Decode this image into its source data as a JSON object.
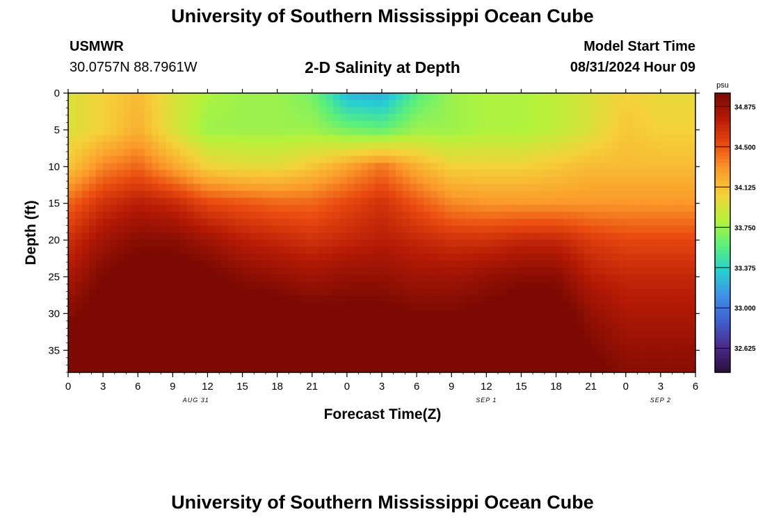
{
  "page": {
    "title": "University of Southern Mississippi Ocean Cube",
    "bottom_title": "University of Southern Mississippi Ocean Cube",
    "station_id": "USMWR",
    "coordinates": "30.0757N  88.7961W",
    "plot_title": "2-D Salinity at Depth",
    "model_start_label": "Model Start Time",
    "model_start_value": "08/31/2024 Hour 09"
  },
  "chart_data": {
    "type": "heatmap",
    "title": "2-D Salinity at Depth",
    "xlabel": "Forecast Time(Z)",
    "ylabel": "Depth (ft)",
    "x_ticks": [
      "0",
      "3",
      "6",
      "9",
      "12",
      "15",
      "18",
      "21",
      "0",
      "3",
      "6",
      "9",
      "12",
      "15",
      "18",
      "21",
      "0",
      "3",
      "6"
    ],
    "x_range_hours": [
      0,
      54
    ],
    "date_labels": [
      {
        "label": "AUG 31",
        "hour": 11
      },
      {
        "label": "SEP 1",
        "hour": 36
      },
      {
        "label": "SEP 2",
        "hour": 51
      }
    ],
    "y_ticks": [
      "0",
      "5",
      "10",
      "15",
      "20",
      "25",
      "30",
      "35"
    ],
    "y_range_ft": [
      0,
      38
    ],
    "y_inverted": true,
    "colorbar": {
      "unit": "psu",
      "min": 32.4,
      "max": 35.0,
      "ticks": [
        "34.875",
        "34.500",
        "34.125",
        "33.750",
        "33.375",
        "33.000",
        "32.625"
      ],
      "colors": [
        "#2b0f3b",
        "#4a2a8a",
        "#3f5fcf",
        "#3f8fe6",
        "#27d0d0",
        "#5cf07a",
        "#b6f23a",
        "#f5d13a",
        "#fb9a2a",
        "#ea4a10",
        "#b51a05",
        "#7c0a02"
      ]
    },
    "depths_ft": [
      0,
      5,
      10,
      15,
      20,
      25,
      30,
      35,
      38
    ],
    "hours": [
      0,
      3,
      6,
      9,
      12,
      15,
      18,
      21,
      24,
      27,
      30,
      33,
      36,
      39,
      42,
      45,
      48,
      51,
      54
    ],
    "salinity_psu": [
      [
        33.95,
        34.05,
        34.15,
        33.95,
        33.8,
        33.75,
        33.75,
        33.65,
        33.25,
        33.2,
        33.55,
        33.75,
        33.8,
        33.8,
        33.85,
        33.95,
        34.05,
        34.0,
        34.0
      ],
      [
        33.95,
        34.05,
        34.2,
        33.95,
        33.75,
        33.75,
        33.75,
        33.75,
        33.65,
        33.6,
        33.75,
        33.75,
        33.8,
        33.8,
        33.85,
        33.95,
        34.1,
        34.05,
        34.05
      ],
      [
        34.1,
        34.35,
        34.45,
        34.25,
        34.05,
        34.0,
        34.0,
        34.1,
        34.25,
        34.4,
        34.2,
        34.05,
        34.05,
        34.05,
        34.1,
        34.15,
        34.15,
        34.15,
        34.15
      ],
      [
        34.45,
        34.65,
        34.75,
        34.7,
        34.55,
        34.5,
        34.45,
        34.45,
        34.55,
        34.65,
        34.5,
        34.35,
        34.3,
        34.3,
        34.3,
        34.3,
        34.3,
        34.3,
        34.3
      ],
      [
        34.65,
        34.85,
        34.95,
        34.95,
        34.85,
        34.75,
        34.7,
        34.65,
        34.7,
        34.75,
        34.7,
        34.65,
        34.65,
        34.7,
        34.7,
        34.6,
        34.55,
        34.55,
        34.55
      ],
      [
        34.8,
        35.0,
        35.1,
        35.1,
        35.05,
        34.95,
        34.9,
        34.85,
        34.9,
        34.9,
        34.85,
        34.85,
        34.9,
        34.95,
        34.95,
        34.75,
        34.7,
        34.7,
        34.7
      ],
      [
        34.95,
        35.1,
        35.2,
        35.2,
        35.15,
        35.1,
        35.1,
        35.05,
        35.05,
        35.05,
        35.0,
        35.0,
        35.05,
        35.1,
        35.1,
        34.9,
        34.8,
        34.8,
        34.8
      ],
      [
        35.1,
        35.2,
        35.3,
        35.3,
        35.2,
        35.2,
        35.25,
        35.3,
        35.2,
        35.15,
        35.1,
        35.1,
        35.1,
        35.15,
        35.15,
        35.0,
        34.9,
        34.9,
        34.9
      ],
      [
        35.15,
        35.25,
        35.35,
        35.35,
        35.25,
        35.2,
        35.3,
        35.4,
        35.25,
        35.2,
        35.15,
        35.15,
        35.15,
        35.2,
        35.2,
        35.05,
        34.95,
        34.95,
        34.95
      ]
    ]
  }
}
